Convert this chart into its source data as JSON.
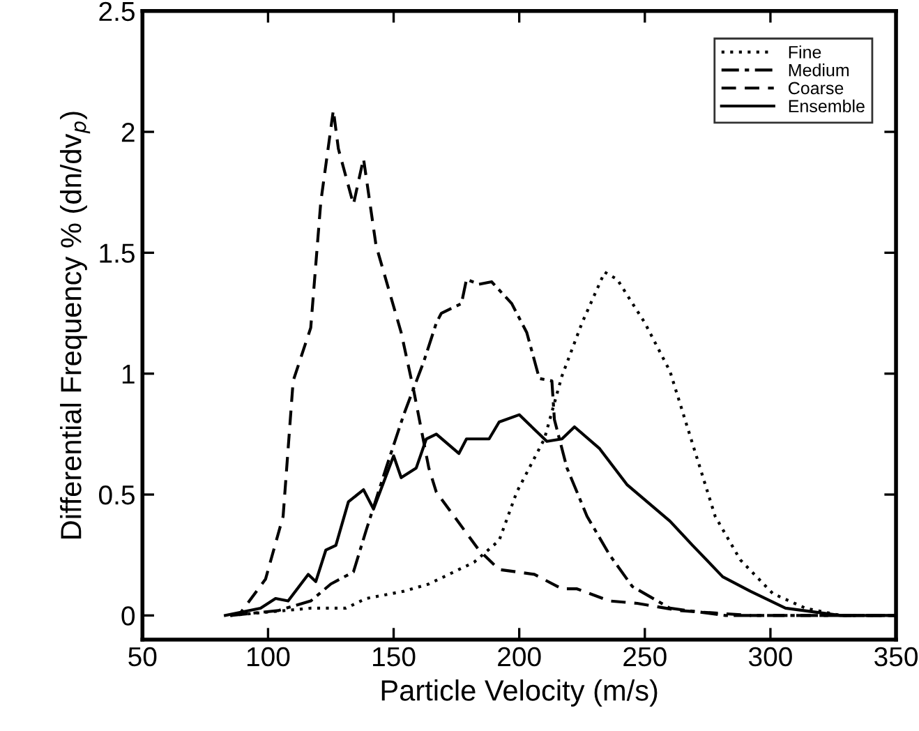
{
  "chart_data": {
    "type": "line",
    "xlabel": "Particle Velocity (m/s)",
    "ylabel": "Differential Frequency % (dn/dv$_{p}$)",
    "xlim": [
      50,
      350
    ],
    "ylim": [
      -0.1,
      2.5
    ],
    "xticks": [
      50,
      100,
      150,
      200,
      250,
      300,
      350
    ],
    "yticks": [
      0,
      0.5,
      1,
      1.5,
      2,
      2.5
    ],
    "grid": false,
    "legend": "top right",
    "marker": "none",
    "series": [
      {
        "name": "Fine",
        "color": "#000000",
        "line_style": "dotted",
        "x": [
          85,
          117,
          131,
          139,
          154,
          164,
          182,
          192,
          199,
          204,
          210,
          217,
          225,
          234,
          239,
          250,
          260,
          269,
          278,
          288,
          301,
          314,
          328,
          350
        ],
        "values": [
          0,
          0.03,
          0.03,
          0.07,
          0.1,
          0.13,
          0.22,
          0.31,
          0.51,
          0.61,
          0.73,
          0.99,
          1.21,
          1.42,
          1.39,
          1.21,
          1.01,
          0.71,
          0.41,
          0.23,
          0.09,
          0.03,
          0,
          0
        ]
      },
      {
        "name": "Medium",
        "color": "#000000",
        "line_style": "dashdot",
        "x": [
          85,
          104,
          117,
          125,
          134,
          139,
          147,
          154,
          162,
          167,
          169,
          177,
          179,
          184,
          189,
          197,
          203,
          208,
          213,
          214,
          219,
          227,
          236,
          245,
          260,
          282,
          350
        ],
        "values": [
          0,
          0.02,
          0.06,
          0.13,
          0.18,
          0.35,
          0.61,
          0.83,
          1.05,
          1.21,
          1.25,
          1.29,
          1.39,
          1.37,
          1.38,
          1.29,
          1.17,
          0.98,
          0.97,
          0.81,
          0.61,
          0.41,
          0.25,
          0.12,
          0.03,
          0,
          0
        ]
      },
      {
        "name": "Coarse",
        "color": "#000000",
        "line_style": "dashed",
        "x": [
          85,
          89,
          99,
          106,
          110,
          117,
          121,
          126,
          128,
          134,
          138,
          143,
          153,
          158,
          164,
          167,
          184,
          192,
          199,
          206,
          217,
          223,
          236,
          247,
          264,
          292,
          350
        ],
        "values": [
          0,
          0.01,
          0.15,
          0.41,
          0.97,
          1.19,
          1.71,
          2.09,
          1.93,
          1.7,
          1.89,
          1.53,
          1.17,
          0.93,
          0.61,
          0.51,
          0.27,
          0.19,
          0.18,
          0.17,
          0.11,
          0.11,
          0.06,
          0.05,
          0.02,
          0,
          0
        ]
      },
      {
        "name": "Ensemble",
        "color": "#000000",
        "line_style": "solid",
        "x": [
          83,
          97,
          103,
          108,
          116,
          119,
          123,
          127,
          132,
          138,
          142,
          150,
          153,
          159,
          163,
          167,
          176,
          179,
          188,
          192,
          200,
          204,
          211,
          217,
          222,
          232,
          243,
          260,
          269,
          281,
          292,
          306,
          328,
          350
        ],
        "values": [
          0,
          0.03,
          0.07,
          0.06,
          0.17,
          0.14,
          0.27,
          0.29,
          0.47,
          0.52,
          0.44,
          0.66,
          0.57,
          0.61,
          0.73,
          0.75,
          0.67,
          0.73,
          0.73,
          0.8,
          0.83,
          0.79,
          0.72,
          0.73,
          0.78,
          0.69,
          0.54,
          0.39,
          0.29,
          0.16,
          0.1,
          0.03,
          0,
          0
        ]
      }
    ]
  }
}
